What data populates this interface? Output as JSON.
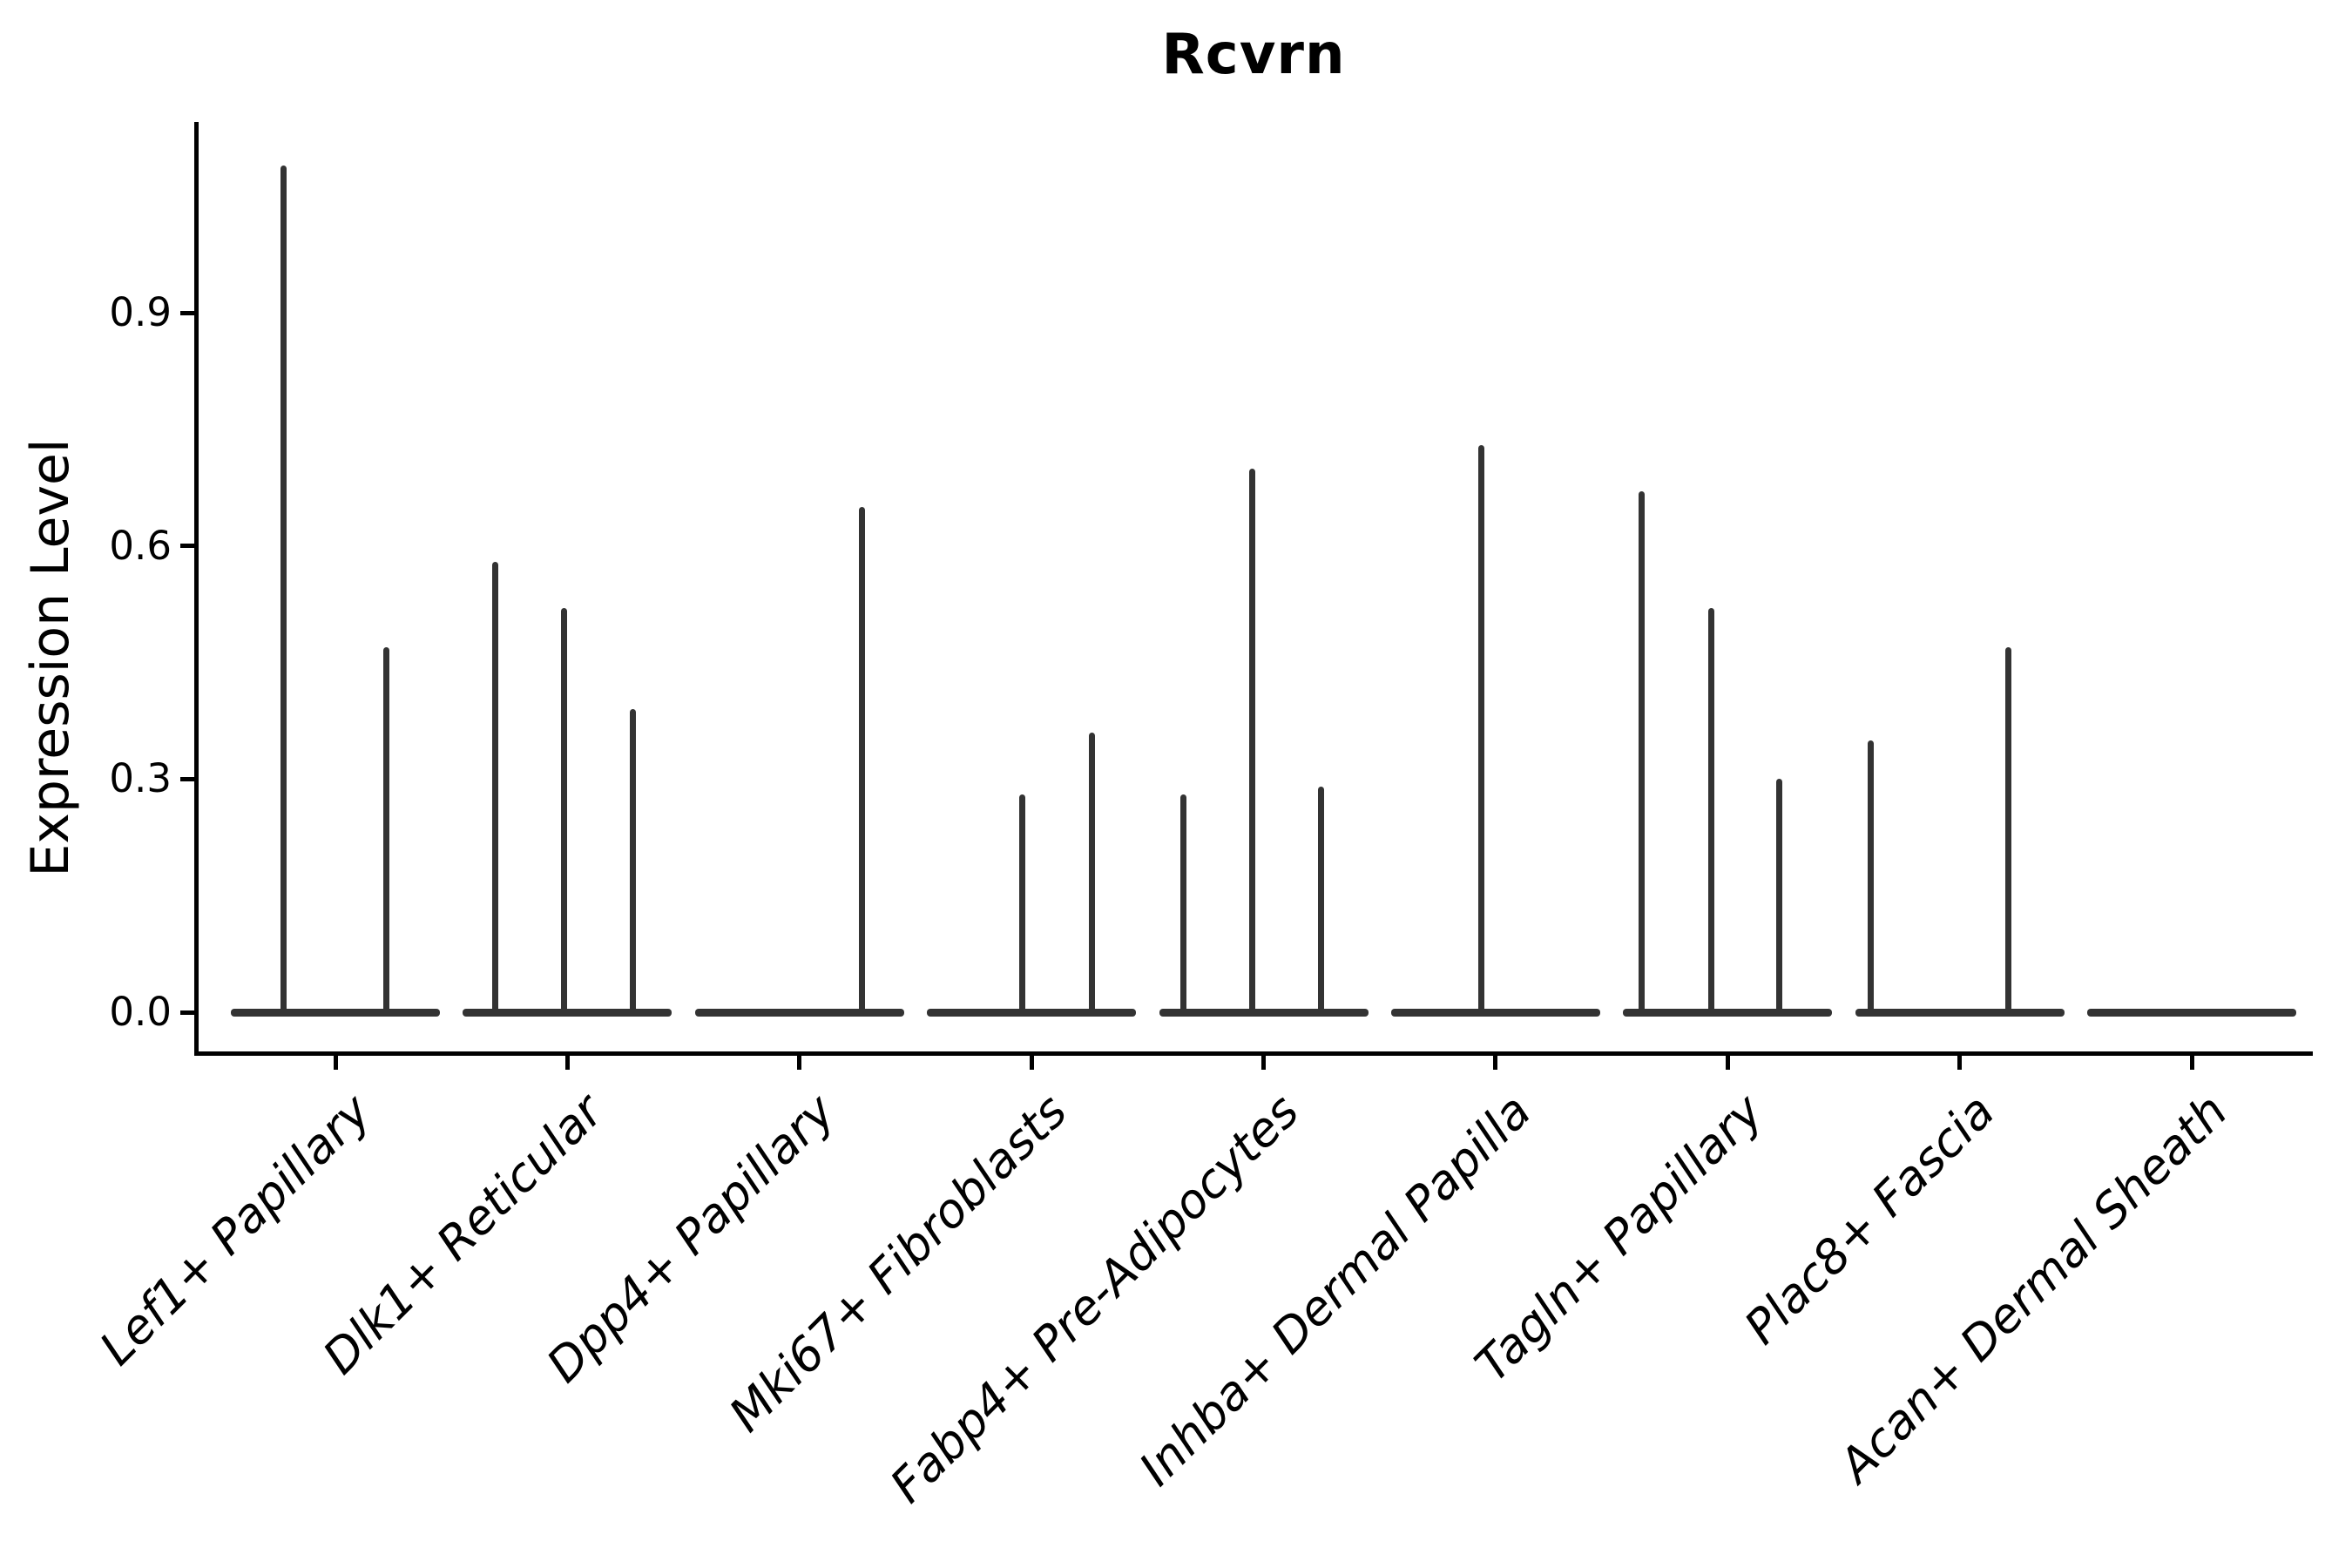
{
  "chart_data": {
    "type": "violin",
    "title": "Rcvrn",
    "ylabel": "Expression Level",
    "xlabel": "",
    "grid": false,
    "legend": "none",
    "y_ticks": [
      "0.0",
      "0.3",
      "0.6",
      "0.9"
    ],
    "ylim": [
      -0.05,
      1.15
    ],
    "ink_color": "#333333",
    "axis_color": "#000000",
    "categories": [
      {
        "label": "Lef1+ Papillary",
        "spikes": [
          {
            "dx": -60,
            "value": 1.09
          },
          {
            "dx": 58,
            "value": 0.47
          }
        ]
      },
      {
        "label": "Dlk1+ Reticular",
        "spikes": [
          {
            "dx": -83,
            "value": 0.58
          },
          {
            "dx": -4,
            "value": 0.52
          },
          {
            "dx": 75,
            "value": 0.39
          }
        ]
      },
      {
        "label": "Dpp4+ Papillary",
        "spikes": [
          {
            "dx": 72,
            "value": 0.65
          }
        ]
      },
      {
        "label": "Mki67+ Fibroblasts",
        "spikes": [
          {
            "dx": -11,
            "value": 0.28
          },
          {
            "dx": 69,
            "value": 0.36
          }
        ]
      },
      {
        "label": "Fabp4+ Pre-Adipocytes",
        "spikes": [
          {
            "dx": -92,
            "value": 0.28
          },
          {
            "dx": -13,
            "value": 0.7
          },
          {
            "dx": 66,
            "value": 0.29
          }
        ]
      },
      {
        "label": "Inhba+ Dermal Papilla",
        "spikes": [
          {
            "dx": -16,
            "value": 0.73
          }
        ]
      },
      {
        "label": "Tagln+ Papillary",
        "spikes": [
          {
            "dx": -99,
            "value": 0.67
          },
          {
            "dx": -19,
            "value": 0.52
          },
          {
            "dx": 59,
            "value": 0.3
          }
        ]
      },
      {
        "label": "Plac8+ Fascia",
        "spikes": [
          {
            "dx": -102,
            "value": 0.35
          },
          {
            "dx": 56,
            "value": 0.47
          }
        ]
      },
      {
        "label": "Acan+ Dermal Sheath",
        "spikes": []
      }
    ]
  }
}
